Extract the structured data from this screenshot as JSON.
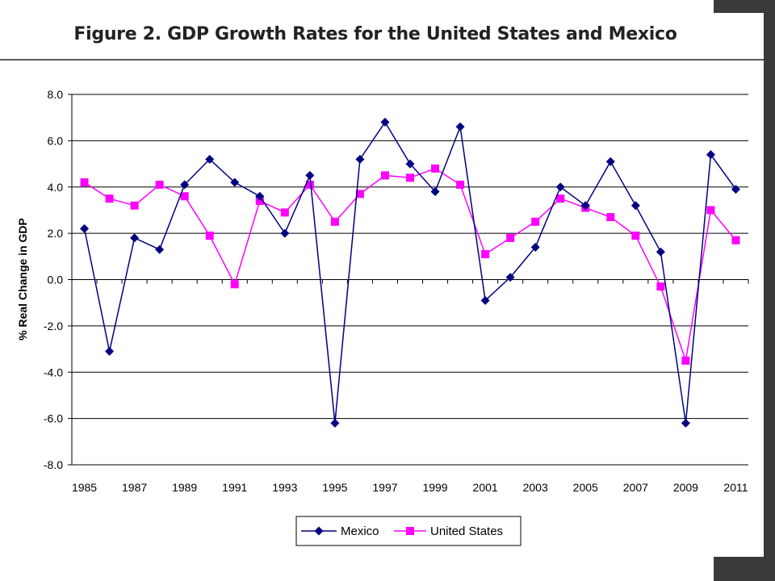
{
  "title": "Figure 2. GDP Growth Rates for the United States and Mexico",
  "colors": {
    "mexico": "#000080",
    "united_states": "#FF00FF",
    "gridline": "#000000",
    "frame_bar": "#3a3a3a"
  },
  "chart_data": {
    "type": "line",
    "title": "Figure 2. GDP Growth Rates for the United States and Mexico",
    "xlabel": "",
    "ylabel": "% Real Change in GDP",
    "ylim": [
      -8,
      8
    ],
    "ytick_step": 2,
    "ytick_labels": [
      "8.0",
      "6.0",
      "4.0",
      "2.0",
      "0.0",
      "-2.0",
      "-4.0",
      "-6.0",
      "-8.0"
    ],
    "x": [
      1985,
      1986,
      1987,
      1988,
      1989,
      1990,
      1991,
      1992,
      1993,
      1994,
      1995,
      1996,
      1997,
      1998,
      1999,
      2000,
      2001,
      2002,
      2003,
      2004,
      2005,
      2006,
      2007,
      2008,
      2009,
      2010,
      2011
    ],
    "xtick_labels": [
      "1985",
      "1987",
      "1989",
      "1991",
      "1993",
      "1995",
      "1997",
      "1999",
      "2001",
      "2003",
      "2005",
      "2007",
      "2009",
      "2011"
    ],
    "grid": "horizontal",
    "legend_position": "bottom",
    "series": [
      {
        "name": "Mexico",
        "marker": "diamond",
        "color": "#000080",
        "values": [
          2.2,
          -3.1,
          1.8,
          1.3,
          4.1,
          5.2,
          4.2,
          3.6,
          2.0,
          4.5,
          -6.2,
          5.2,
          6.8,
          5.0,
          3.8,
          6.6,
          -0.9,
          0.1,
          1.4,
          4.0,
          3.2,
          5.1,
          3.2,
          1.2,
          -6.2,
          5.4,
          3.9
        ]
      },
      {
        "name": "United States",
        "marker": "square",
        "color": "#FF00FF",
        "values": [
          4.2,
          3.5,
          3.2,
          4.1,
          3.6,
          1.9,
          -0.2,
          3.4,
          2.9,
          4.1,
          2.5,
          3.7,
          4.5,
          4.4,
          4.8,
          4.1,
          1.1,
          1.8,
          2.5,
          3.5,
          3.1,
          2.7,
          1.9,
          -0.3,
          -3.5,
          3.0,
          1.7
        ]
      }
    ]
  }
}
